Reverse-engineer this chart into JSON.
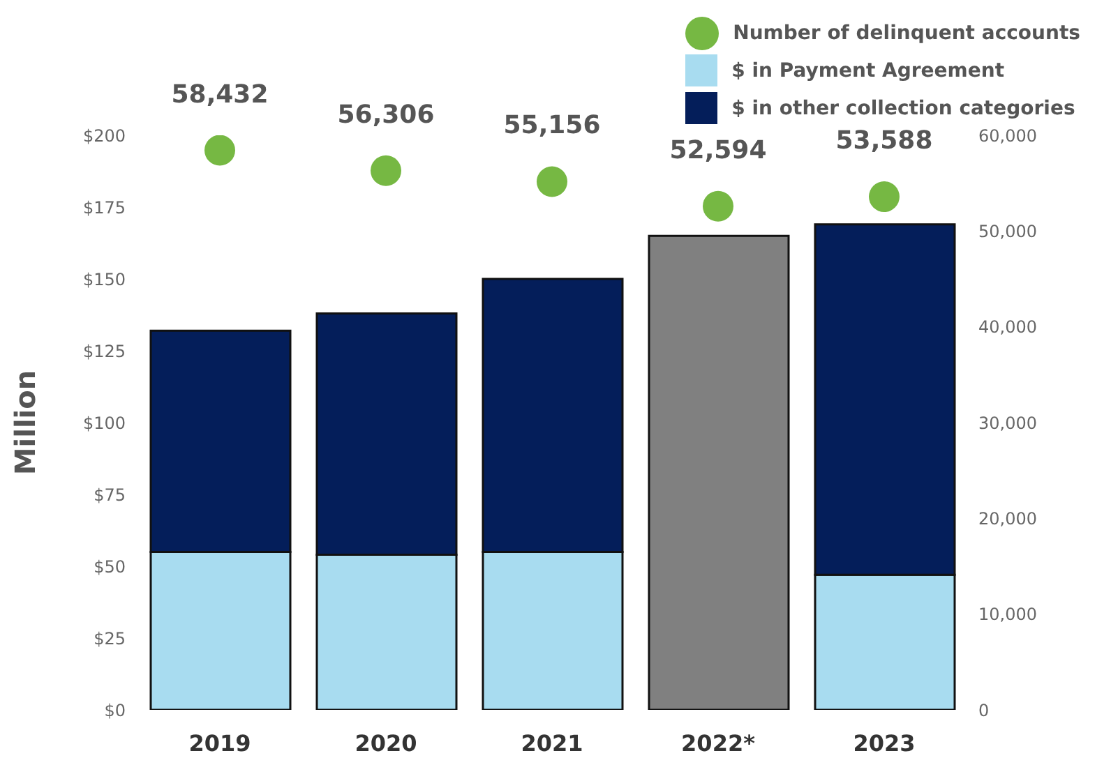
{
  "chart_data": {
    "type": "bar",
    "stacked": true,
    "ylabel": "Million",
    "categories": [
      "2019",
      "2020",
      "2021",
      "2022*",
      "2023"
    ],
    "series": [
      {
        "name": "$ in Payment Agreement",
        "color": "#a8dcf0",
        "values": [
          55,
          54,
          55,
          null,
          47
        ]
      },
      {
        "name": "$ in other collection categories",
        "color": "#041e5a",
        "values": [
          77,
          84,
          95,
          null,
          122
        ]
      },
      {
        "color": "#808080",
        "values": [
          null,
          null,
          null,
          165,
          null
        ]
      },
      {
        "name": "Number of delinquent accounts",
        "type": "scatter",
        "axis": "y2",
        "color": "#76b843",
        "marker": "circle",
        "values": [
          58432,
          56306,
          55156,
          52594,
          53588
        ],
        "value_labels": [
          "58,432",
          "56,306",
          "55,156",
          "52,594",
          "53,588"
        ]
      }
    ],
    "ylim": [
      0,
      200
    ],
    "yticks": [
      {
        "value": 0,
        "label": "$0"
      },
      {
        "value": 25,
        "label": "$25"
      },
      {
        "value": 50,
        "label": "$50"
      },
      {
        "value": 75,
        "label": "$75"
      },
      {
        "value": 100,
        "label": "$100"
      },
      {
        "value": 125,
        "label": "$125"
      },
      {
        "value": 150,
        "label": "$150"
      },
      {
        "value": 175,
        "label": "$175"
      },
      {
        "value": 200,
        "label": "$200"
      }
    ],
    "y2lim": [
      0,
      60000
    ],
    "y2ticks": [
      0,
      {
        "value": 10000,
        "label": "10,000"
      },
      {
        "value": 20000,
        "label": "20,000"
      },
      {
        "value": 30000,
        "label": "30,000"
      },
      {
        "value": 40000,
        "label": "40,000"
      },
      {
        "value": 50000,
        "label": "50,000"
      },
      {
        "value": 60000,
        "label": "60,000"
      }
    ],
    "grid": false,
    "legend": "top right"
  }
}
